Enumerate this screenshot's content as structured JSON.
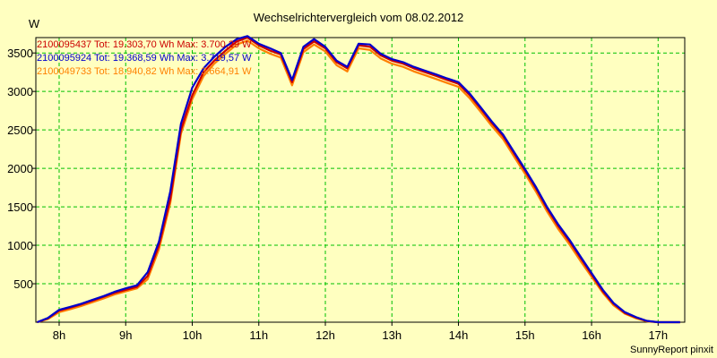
{
  "chart_data": {
    "type": "line",
    "title": "Wechselrichtervergleich vom 08.02.2012",
    "ylabel": "W",
    "xlabel": "",
    "footer": "SunnyReport pinxit",
    "xlim": [
      7.65,
      17.4
    ],
    "ylim": [
      0,
      3700
    ],
    "x_ticks": [
      {
        "value": 8,
        "label": "8h"
      },
      {
        "value": 9,
        "label": "9h"
      },
      {
        "value": 10,
        "label": "10h"
      },
      {
        "value": 11,
        "label": "11h"
      },
      {
        "value": 12,
        "label": "12h"
      },
      {
        "value": 13,
        "label": "13h"
      },
      {
        "value": 14,
        "label": "14h"
      },
      {
        "value": 15,
        "label": "15h"
      },
      {
        "value": 16,
        "label": "16h"
      },
      {
        "value": 17,
        "label": "17h"
      }
    ],
    "y_ticks": [
      {
        "value": 500,
        "label": "500"
      },
      {
        "value": 1000,
        "label": "1000"
      },
      {
        "value": 1500,
        "label": "1500"
      },
      {
        "value": 2000,
        "label": "2000"
      },
      {
        "value": 2500,
        "label": "2500"
      },
      {
        "value": 3000,
        "label": "3000"
      },
      {
        "value": 3500,
        "label": "3500"
      }
    ],
    "grid": true,
    "legend_position": "top-left",
    "x": [
      7.67,
      7.83,
      8.0,
      8.17,
      8.33,
      8.5,
      8.67,
      8.83,
      9.0,
      9.17,
      9.33,
      9.5,
      9.67,
      9.83,
      10.0,
      10.17,
      10.33,
      10.5,
      10.67,
      10.83,
      11.0,
      11.17,
      11.33,
      11.5,
      11.67,
      11.83,
      12.0,
      12.17,
      12.33,
      12.5,
      12.67,
      12.83,
      13.0,
      13.17,
      13.33,
      13.5,
      13.67,
      13.83,
      14.0,
      14.17,
      14.33,
      14.5,
      14.67,
      14.83,
      15.0,
      15.17,
      15.33,
      15.5,
      15.67,
      15.83,
      16.0,
      16.17,
      16.33,
      16.5,
      16.67,
      16.83,
      17.0,
      17.17,
      17.33
    ],
    "series": [
      {
        "name": "2100095437 Tot: 19.303,70 Wh Max: 3.700,29 W",
        "color": "#cc0000",
        "values": [
          0,
          50,
          150,
          190,
          230,
          280,
          330,
          380,
          420,
          460,
          600,
          1000,
          1600,
          2500,
          2950,
          3250,
          3400,
          3530,
          3650,
          3700,
          3600,
          3530,
          3480,
          3120,
          3550,
          3650,
          3560,
          3380,
          3300,
          3600,
          3580,
          3470,
          3400,
          3360,
          3300,
          3250,
          3200,
          3150,
          3100,
          2950,
          2780,
          2590,
          2420,
          2200,
          1970,
          1730,
          1480,
          1250,
          1050,
          840,
          620,
          400,
          240,
          120,
          60,
          15,
          0,
          0,
          0
        ],
        "legend_color": "#cc0000"
      },
      {
        "name": "2100095924 Tot: 19.368,59 Wh Max: 3.719,57 W",
        "color": "#0000cc",
        "values": [
          0,
          55,
          160,
          200,
          240,
          290,
          340,
          395,
          440,
          480,
          650,
          1050,
          1700,
          2580,
          3050,
          3300,
          3450,
          3580,
          3680,
          3720,
          3620,
          3560,
          3500,
          3150,
          3580,
          3680,
          3580,
          3400,
          3320,
          3620,
          3610,
          3490,
          3420,
          3380,
          3320,
          3270,
          3220,
          3170,
          3120,
          2970,
          2800,
          2610,
          2440,
          2220,
          1990,
          1750,
          1500,
          1270,
          1070,
          860,
          640,
          420,
          250,
          130,
          65,
          18,
          0,
          0,
          0
        ],
        "legend_color": "#0000cc"
      },
      {
        "name": "2100049733 Tot: 18.940,82 Wh Max: 3.664,91 W",
        "color": "#ff8000",
        "values": [
          0,
          40,
          130,
          170,
          210,
          260,
          310,
          360,
          400,
          440,
          560,
          950,
          1550,
          2450,
          2900,
          3200,
          3360,
          3490,
          3610,
          3660,
          3560,
          3490,
          3440,
          3080,
          3510,
          3610,
          3520,
          3340,
          3260,
          3560,
          3540,
          3430,
          3360,
          3320,
          3260,
          3210,
          3160,
          3110,
          3060,
          2910,
          2740,
          2550,
          2380,
          2160,
          1930,
          1690,
          1440,
          1210,
          1010,
          800,
          590,
          380,
          220,
          110,
          50,
          10,
          0,
          0,
          0
        ],
        "legend_color": "#ff8000"
      }
    ]
  }
}
